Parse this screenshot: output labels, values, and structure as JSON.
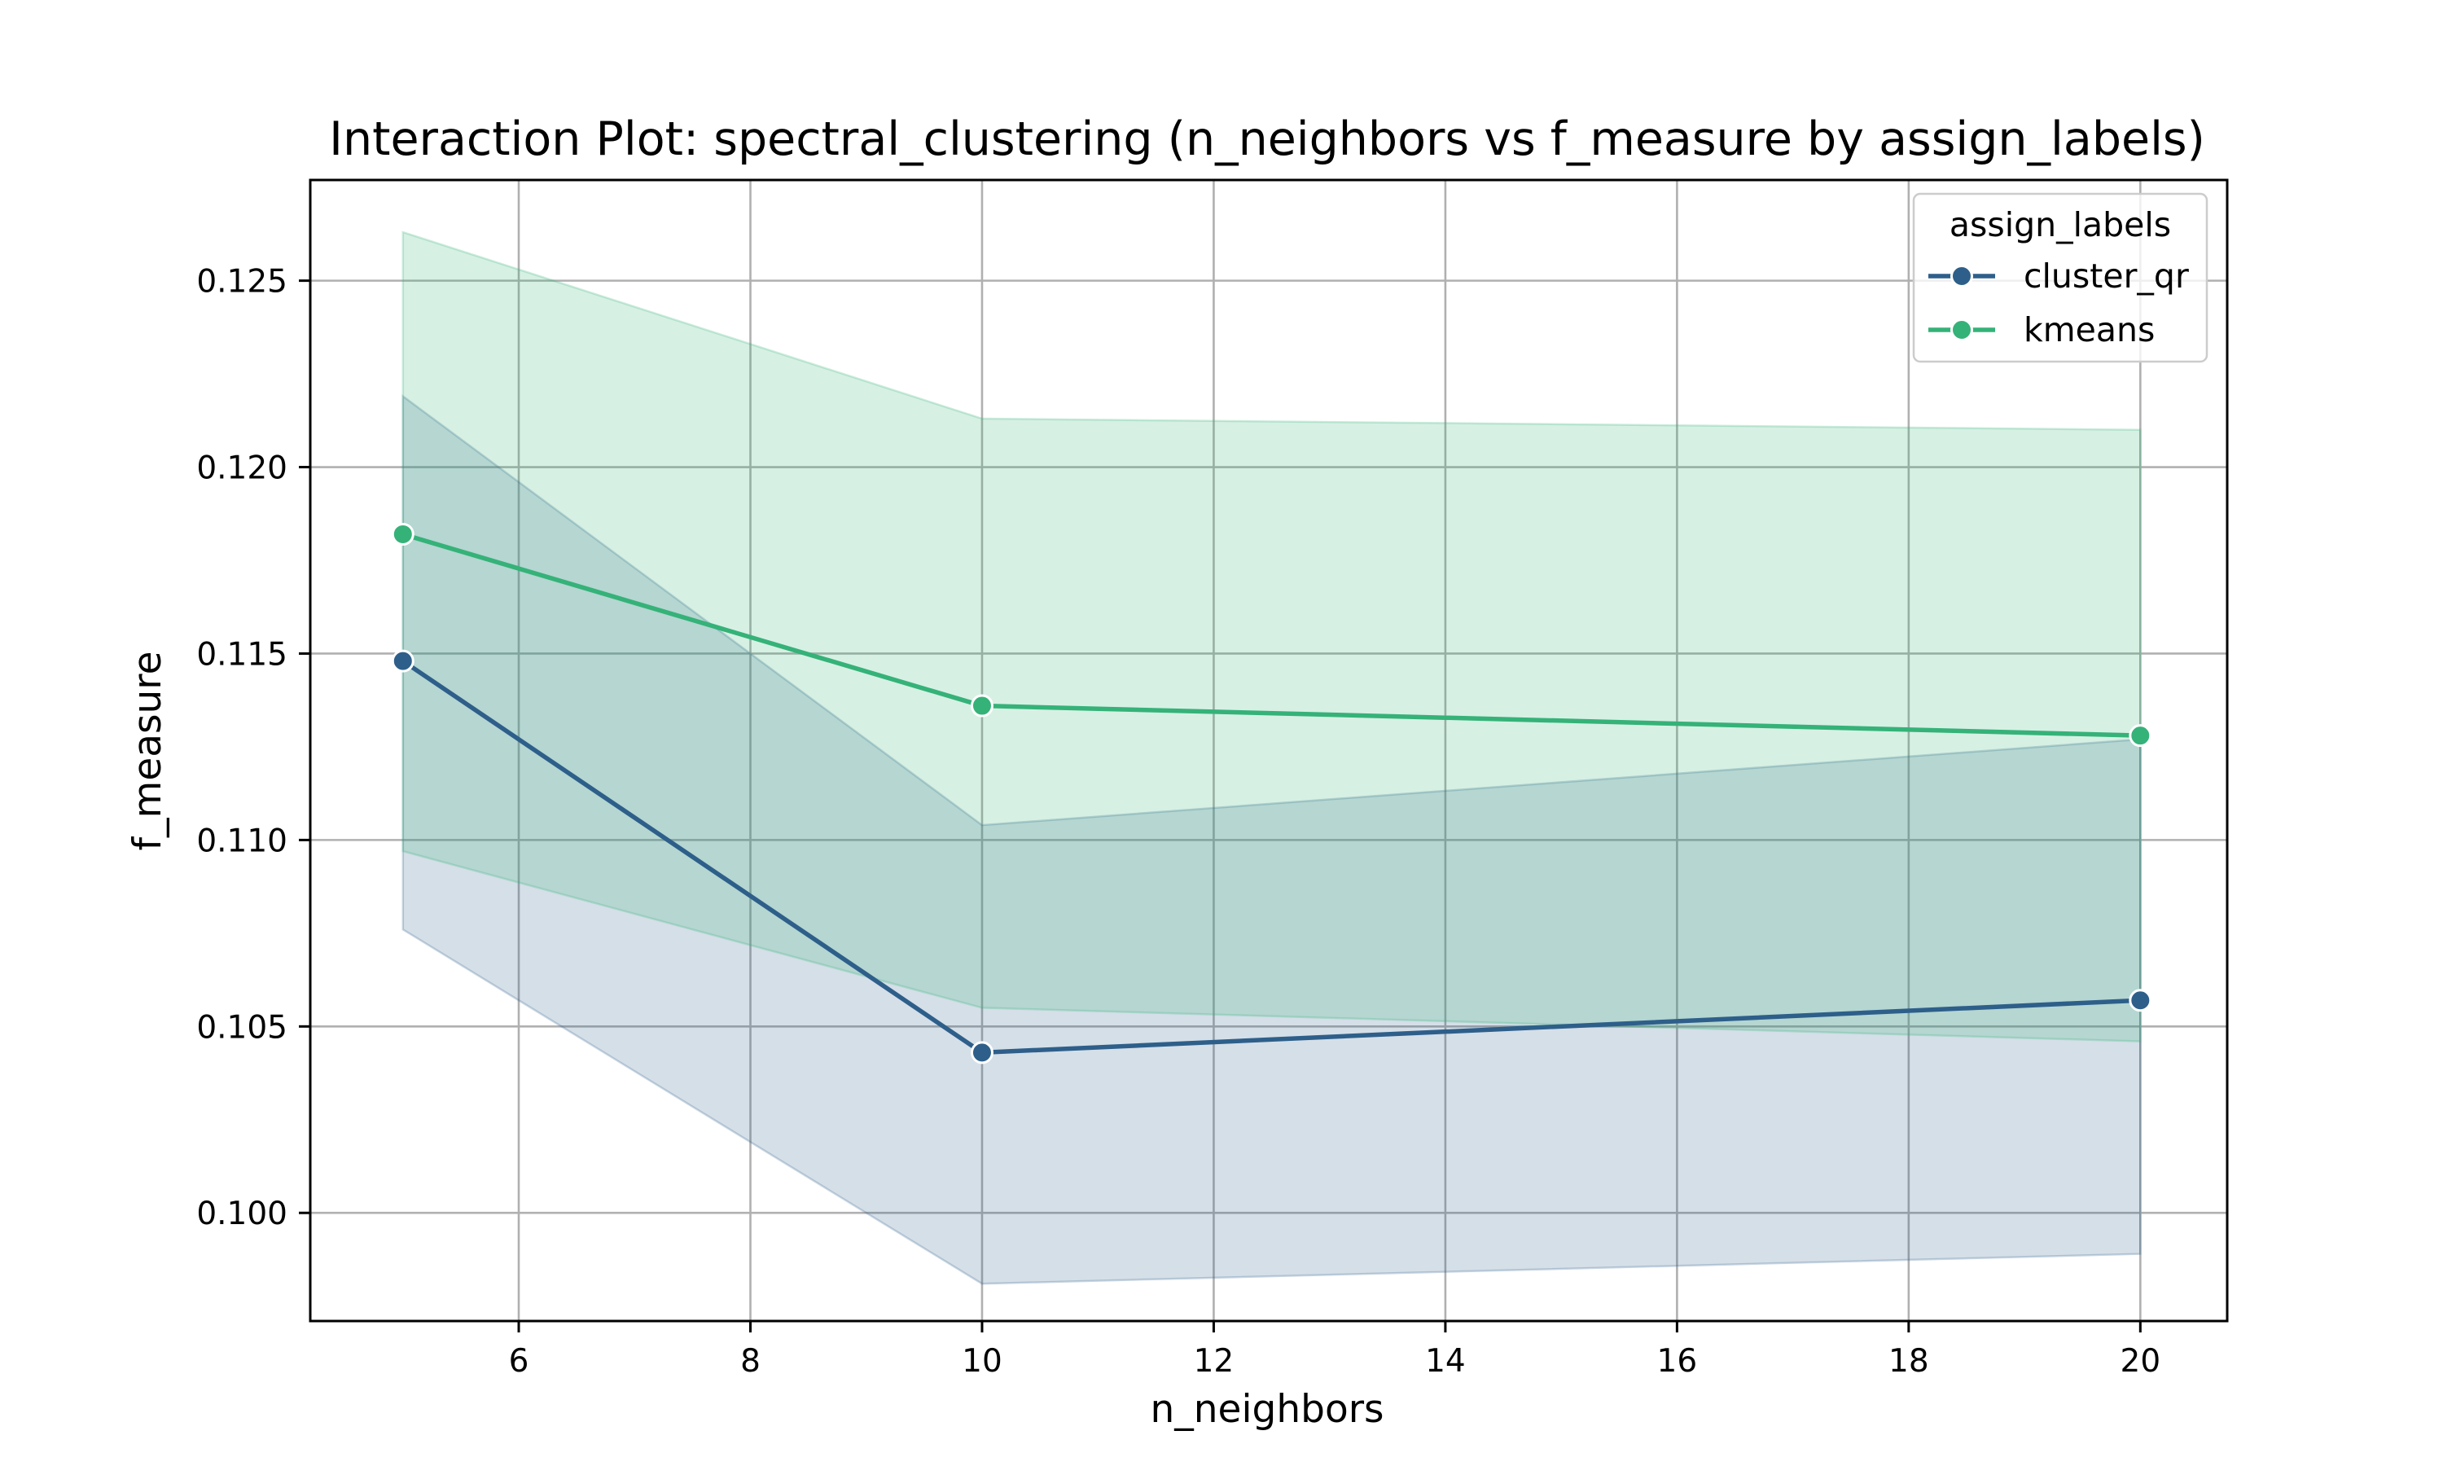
{
  "chart_data": {
    "type": "line",
    "title": "Interaction Plot: spectral_clustering (n_neighbors vs f_measure by assign_labels)",
    "xlabel": "n_neighbors",
    "ylabel": "f_measure",
    "xlim": [
      4.2,
      20.75
    ],
    "ylim": [
      0.0971,
      0.1277
    ],
    "xticks": [
      6,
      8,
      10,
      12,
      14,
      16,
      18,
      20
    ],
    "yticks": [
      0.1,
      0.105,
      0.11,
      0.115,
      0.12,
      0.125
    ],
    "xtick_labels": [
      "6",
      "8",
      "10",
      "12",
      "14",
      "16",
      "18",
      "20"
    ],
    "ytick_labels": [
      "0.100",
      "0.105",
      "0.110",
      "0.115",
      "0.120",
      "0.125"
    ],
    "grid": true,
    "legend": {
      "title": "assign_labels",
      "placement": "top-right"
    },
    "x": [
      5,
      10,
      20
    ],
    "series": [
      {
        "name": "cluster_qr",
        "color": "#2e5f8a",
        "values": [
          0.1148,
          0.1043,
          0.1057
        ],
        "ci_lower": [
          0.1076,
          0.0981,
          0.0989
        ],
        "ci_upper": [
          0.1219,
          0.1104,
          0.1127
        ]
      },
      {
        "name": "kmeans",
        "color": "#35b278",
        "values": [
          0.1182,
          0.1136,
          0.1128
        ],
        "ci_lower": [
          0.1097,
          0.1055,
          0.1046
        ],
        "ci_upper": [
          0.1263,
          0.1213,
          0.121
        ]
      }
    ]
  }
}
